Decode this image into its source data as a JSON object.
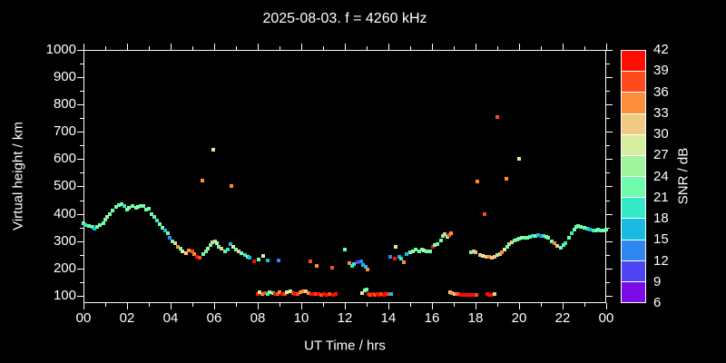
{
  "title": "2025-08-03. f = 4260 kHz",
  "chart_data": {
    "type": "scatter",
    "title": "2025-08-03. f = 4260 kHz",
    "xlabel": "UT Time / hrs",
    "ylabel": "Virtual height / km",
    "xlim": [
      0,
      24
    ],
    "ylim": [
      73,
      1000
    ],
    "grid": false,
    "background": "#000000",
    "frame_color": "#ffffff",
    "x_ticks": {
      "values": [
        0,
        2,
        4,
        6,
        8,
        10,
        12,
        14,
        16,
        18,
        20,
        22,
        24
      ],
      "labels": [
        "00",
        "02",
        "04",
        "06",
        "08",
        "10",
        "12",
        "14",
        "16",
        "18",
        "20",
        "22",
        "00"
      ],
      "minor_step": 1
    },
    "y_ticks": {
      "values": [
        100,
        200,
        300,
        400,
        500,
        600,
        700,
        800,
        900,
        1000
      ],
      "minor_step": 50
    },
    "colorbar": {
      "label": "SNR / dB",
      "levels": [
        6,
        9,
        12,
        15,
        18,
        21,
        24,
        27,
        30,
        33,
        36,
        39,
        42
      ],
      "colors": [
        "#7d0be8",
        "#4d44f2",
        "#2e86f0",
        "#18bce3",
        "#35e8c8",
        "#6ffcad",
        "#9ff59b",
        "#d7ee9e",
        "#f0ca82",
        "#fc8d3b",
        "#fd491c",
        "#fe0d00"
      ]
    },
    "points_format": "[ut_hours, virtual_height_km, snr_db]",
    "points": [
      [
        0.0,
        365,
        22
      ],
      [
        0.1,
        358,
        19
      ],
      [
        0.25,
        357,
        22
      ],
      [
        0.4,
        352,
        22
      ],
      [
        0.5,
        347,
        16
      ],
      [
        0.62,
        352,
        22
      ],
      [
        0.75,
        358,
        22
      ],
      [
        0.9,
        367,
        22
      ],
      [
        1.0,
        378,
        22
      ],
      [
        1.1,
        390,
        25
      ],
      [
        1.2,
        400,
        22
      ],
      [
        1.35,
        413,
        22
      ],
      [
        1.5,
        424,
        22
      ],
      [
        1.62,
        432,
        22
      ],
      [
        1.75,
        435,
        22
      ],
      [
        1.88,
        428,
        19
      ],
      [
        2.0,
        416,
        22
      ],
      [
        2.1,
        423,
        25
      ],
      [
        2.25,
        429,
        22
      ],
      [
        2.4,
        421,
        22
      ],
      [
        2.5,
        426,
        25
      ],
      [
        2.62,
        430,
        22
      ],
      [
        2.75,
        428,
        22
      ],
      [
        2.88,
        416,
        22
      ],
      [
        3.0,
        420,
        22
      ],
      [
        3.12,
        398,
        22
      ],
      [
        3.25,
        388,
        22
      ],
      [
        3.38,
        376,
        19
      ],
      [
        3.5,
        363,
        22
      ],
      [
        3.62,
        350,
        22
      ],
      [
        3.75,
        340,
        16
      ],
      [
        3.88,
        330,
        22
      ],
      [
        3.95,
        312,
        13
      ],
      [
        4.1,
        300,
        22
      ],
      [
        4.2,
        291,
        31
      ],
      [
        4.32,
        280,
        34
      ],
      [
        4.45,
        272,
        22
      ],
      [
        4.55,
        262,
        28
      ],
      [
        4.7,
        255,
        31
      ],
      [
        4.85,
        267,
        34
      ],
      [
        5.0,
        262,
        37
      ],
      [
        5.1,
        251,
        34
      ],
      [
        5.2,
        243,
        40
      ],
      [
        5.35,
        238,
        37
      ],
      [
        5.5,
        251,
        22
      ],
      [
        5.62,
        262,
        22
      ],
      [
        5.72,
        272,
        25
      ],
      [
        5.82,
        285,
        22
      ],
      [
        5.92,
        296,
        31
      ],
      [
        6.02,
        300,
        22
      ],
      [
        6.12,
        291,
        28
      ],
      [
        6.22,
        279,
        22
      ],
      [
        6.35,
        271,
        31
      ],
      [
        6.5,
        262,
        22
      ],
      [
        6.62,
        268,
        19
      ],
      [
        6.75,
        289,
        16
      ],
      [
        6.88,
        279,
        28
      ],
      [
        7.0,
        269,
        22
      ],
      [
        7.12,
        262,
        31
      ],
      [
        7.25,
        255,
        22
      ],
      [
        7.4,
        249,
        19
      ],
      [
        7.52,
        243,
        22
      ],
      [
        7.62,
        238,
        16
      ],
      [
        7.82,
        227,
        40
      ],
      [
        8.02,
        232,
        22
      ],
      [
        8.25,
        246,
        28
      ],
      [
        8.45,
        228,
        16
      ],
      [
        8.95,
        229,
        14
      ],
      [
        5.45,
        523,
        34
      ],
      [
        5.95,
        634,
        28
      ],
      [
        6.8,
        501,
        34
      ],
      [
        18.1,
        520,
        34
      ],
      [
        18.42,
        399,
        37
      ],
      [
        19.0,
        754,
        37
      ],
      [
        19.42,
        529,
        34
      ],
      [
        19.98,
        601,
        28
      ],
      [
        10.42,
        226,
        37
      ],
      [
        10.7,
        209,
        34
      ],
      [
        11.42,
        203,
        37
      ],
      [
        12.0,
        269,
        22
      ],
      [
        12.2,
        219,
        34
      ],
      [
        12.32,
        209,
        19
      ],
      [
        12.42,
        215,
        19
      ],
      [
        12.6,
        222,
        10
      ],
      [
        12.75,
        226,
        13
      ],
      [
        12.82,
        212,
        16
      ],
      [
        12.95,
        207,
        16
      ],
      [
        13.02,
        196,
        34
      ],
      [
        14.1,
        243,
        13
      ],
      [
        14.28,
        236,
        40
      ],
      [
        14.35,
        279,
        28
      ],
      [
        14.5,
        243,
        16
      ],
      [
        14.6,
        236,
        19
      ],
      [
        14.7,
        223,
        34
      ],
      [
        14.85,
        252,
        16
      ],
      [
        15.0,
        258,
        22
      ],
      [
        15.12,
        263,
        25
      ],
      [
        15.25,
        268,
        22
      ],
      [
        15.4,
        263,
        22
      ],
      [
        15.52,
        270,
        22
      ],
      [
        15.62,
        266,
        28
      ],
      [
        15.75,
        262,
        22
      ],
      [
        15.9,
        263,
        22
      ],
      [
        16.05,
        280,
        40
      ],
      [
        16.12,
        286,
        22
      ],
      [
        16.25,
        290,
        22
      ],
      [
        16.4,
        301,
        22
      ],
      [
        16.5,
        320,
        22
      ],
      [
        16.6,
        327,
        31
      ],
      [
        16.7,
        316,
        25
      ],
      [
        16.8,
        321,
        37
      ],
      [
        16.88,
        330,
        34
      ],
      [
        17.8,
        259,
        22
      ],
      [
        17.9,
        262,
        31
      ],
      [
        18.0,
        258,
        31
      ],
      [
        18.2,
        248,
        31
      ],
      [
        18.35,
        245,
        28
      ],
      [
        18.5,
        243,
        31
      ],
      [
        18.62,
        241,
        34
      ],
      [
        18.75,
        239,
        31
      ],
      [
        18.88,
        242,
        31
      ],
      [
        19.0,
        248,
        25
      ],
      [
        19.12,
        252,
        31
      ],
      [
        19.22,
        258,
        34
      ],
      [
        19.32,
        268,
        28
      ],
      [
        19.45,
        278,
        22
      ],
      [
        19.55,
        288,
        25
      ],
      [
        19.65,
        295,
        31
      ],
      [
        19.78,
        301,
        22
      ],
      [
        19.9,
        306,
        22
      ],
      [
        20.0,
        309,
        22
      ],
      [
        20.12,
        311,
        25
      ],
      [
        20.25,
        313,
        22
      ],
      [
        20.38,
        312,
        22
      ],
      [
        20.5,
        315,
        22
      ],
      [
        20.62,
        318,
        19
      ],
      [
        20.75,
        320,
        22
      ],
      [
        20.88,
        322,
        16
      ],
      [
        21.0,
        320,
        13
      ],
      [
        21.12,
        318,
        19
      ],
      [
        21.25,
        315,
        22
      ],
      [
        21.35,
        311,
        22
      ],
      [
        21.5,
        300,
        22
      ],
      [
        21.62,
        291,
        34
      ],
      [
        21.75,
        282,
        31
      ],
      [
        21.9,
        277,
        22
      ],
      [
        22.02,
        285,
        22
      ],
      [
        22.12,
        292,
        19
      ],
      [
        22.3,
        311,
        22
      ],
      [
        22.42,
        330,
        19
      ],
      [
        22.52,
        342,
        22
      ],
      [
        22.62,
        352,
        22
      ],
      [
        22.72,
        357,
        22
      ],
      [
        22.85,
        352,
        22
      ],
      [
        23.0,
        348,
        22
      ],
      [
        23.12,
        345,
        19
      ],
      [
        23.25,
        342,
        16
      ],
      [
        23.4,
        340,
        19
      ],
      [
        23.52,
        338,
        22
      ],
      [
        23.62,
        342,
        22
      ],
      [
        23.75,
        340,
        22
      ],
      [
        23.88,
        338,
        22
      ],
      [
        24.0,
        342,
        22
      ],
      [
        8.0,
        107,
        40
      ],
      [
        8.1,
        112,
        28
      ],
      [
        8.2,
        108,
        34
      ],
      [
        8.32,
        110,
        37
      ],
      [
        8.45,
        106,
        19
      ],
      [
        8.55,
        112,
        25
      ],
      [
        8.7,
        110,
        22
      ],
      [
        8.8,
        106,
        40
      ],
      [
        8.9,
        108,
        37
      ],
      [
        9.0,
        112,
        34
      ],
      [
        9.12,
        107,
        40
      ],
      [
        9.25,
        105,
        37
      ],
      [
        9.35,
        112,
        28
      ],
      [
        9.5,
        115,
        28
      ],
      [
        9.62,
        110,
        37
      ],
      [
        9.72,
        107,
        40
      ],
      [
        9.82,
        108,
        37
      ],
      [
        9.95,
        113,
        34
      ],
      [
        10.08,
        117,
        34
      ],
      [
        10.2,
        115,
        31
      ],
      [
        10.32,
        110,
        34
      ],
      [
        10.45,
        105,
        40
      ],
      [
        10.55,
        106,
        40
      ],
      [
        10.68,
        105,
        37
      ],
      [
        10.78,
        107,
        40
      ],
      [
        10.9,
        104,
        37
      ],
      [
        11.02,
        105,
        40
      ],
      [
        11.15,
        104,
        40
      ],
      [
        11.3,
        105,
        37
      ],
      [
        11.45,
        104,
        40
      ],
      [
        11.58,
        105,
        40
      ],
      [
        12.78,
        110,
        28
      ],
      [
        12.9,
        119,
        25
      ],
      [
        13.0,
        124,
        22
      ],
      [
        13.08,
        107,
        40
      ],
      [
        13.18,
        104,
        37
      ],
      [
        13.28,
        106,
        40
      ],
      [
        13.38,
        103,
        37
      ],
      [
        13.48,
        107,
        40
      ],
      [
        13.58,
        104,
        40
      ],
      [
        13.68,
        106,
        37
      ],
      [
        13.78,
        104,
        40
      ],
      [
        13.88,
        105,
        40
      ],
      [
        14.0,
        105,
        37
      ],
      [
        14.12,
        106,
        16
      ],
      [
        16.82,
        113,
        31
      ],
      [
        16.92,
        110,
        34
      ],
      [
        17.02,
        108,
        31
      ],
      [
        17.12,
        107,
        34
      ],
      [
        17.22,
        105,
        37
      ],
      [
        17.32,
        104,
        40
      ],
      [
        17.45,
        103,
        40
      ],
      [
        17.58,
        103,
        40
      ],
      [
        17.72,
        104,
        40
      ],
      [
        17.88,
        103,
        40
      ],
      [
        18.02,
        104,
        37
      ],
      [
        18.52,
        105,
        40
      ],
      [
        18.62,
        104,
        40
      ],
      [
        18.75,
        104,
        40
      ],
      [
        18.88,
        106,
        31
      ],
      [
        7.83,
        225,
        40
      ]
    ]
  }
}
